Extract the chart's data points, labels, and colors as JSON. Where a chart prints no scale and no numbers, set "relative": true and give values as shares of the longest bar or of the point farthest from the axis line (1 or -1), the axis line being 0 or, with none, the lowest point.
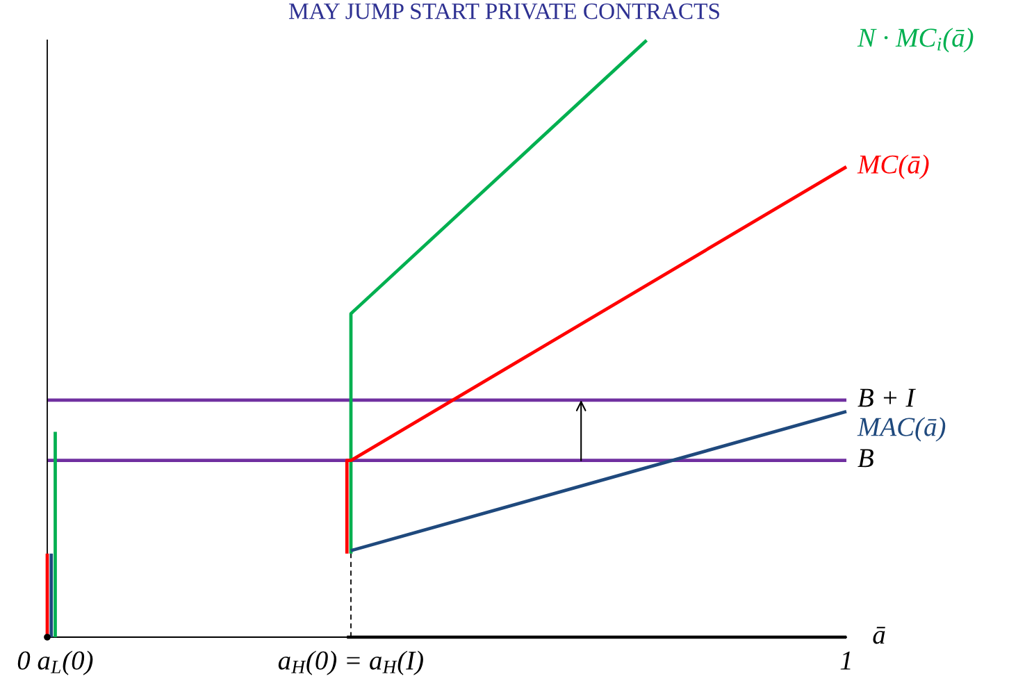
{
  "chart_data": {
    "type": "line",
    "title": "MAY JUMP START PRIVATE CONTRACTS",
    "xlabel": "ā",
    "relative": true,
    "tick_labels": "x",
    "xlim": [
      0,
      1
    ],
    "xticks": [
      {
        "value": 0.01,
        "label": "0 a$_{L}$(0)"
      },
      {
        "value": 0.38,
        "label": "a$_{H}$(0) = a$_{H}$(I)"
      },
      1
    ],
    "series": [
      {
        "name": "N · MC$_{i}$(ā)",
        "color": "#00b050",
        "x": [
          0.01,
          0.01,
          null,
          0.38,
          0.38,
          0.75
        ],
        "values": [
          0,
          0.344,
          null,
          0.14,
          0.542,
          1
        ]
      },
      {
        "name": "MC(ā)",
        "color": "#ff0000",
        "x": [
          0,
          0,
          null,
          0.375,
          0.375,
          0.38,
          1
        ],
        "values": [
          0,
          0.14,
          null,
          0.14,
          0.296,
          0.296,
          0.788
        ]
      },
      {
        "name": "MAC(ā)",
        "color": "#1f497d",
        "x": [
          0.005,
          0.005,
          null,
          0.38,
          1
        ],
        "values": [
          0,
          0.14,
          null,
          0.145,
          0.378
        ]
      },
      {
        "color": "#000000",
        "x": [
          0.375,
          1
        ],
        "values": [
          0,
          0
        ]
      },
      {
        "color": "#000000",
        "line_style": "dashed",
        "x": [
          0.38,
          0.38
        ],
        "values": [
          0,
          0.14
        ]
      }
    ],
    "ref_lines": [
      {
        "axis": "y",
        "value": 0.397,
        "label": "B + I",
        "color": "#7030a0"
      },
      {
        "axis": "y",
        "value": 0.296,
        "label": "B",
        "color": "#7030a0"
      }
    ]
  }
}
